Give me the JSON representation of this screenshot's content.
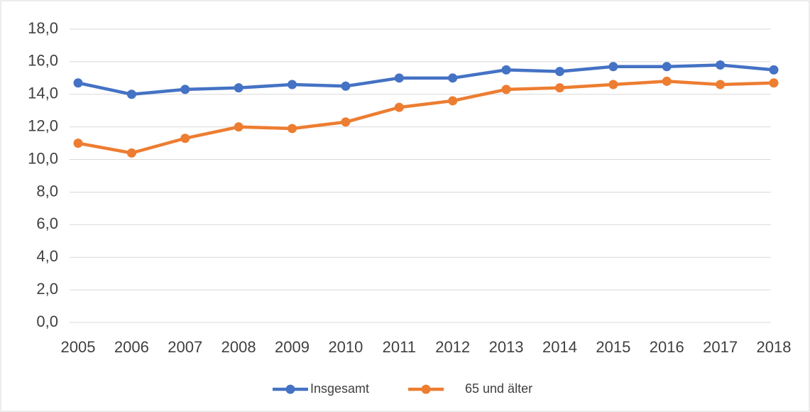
{
  "chart_data": {
    "type": "line",
    "categories": [
      "2005",
      "2006",
      "2007",
      "2008",
      "2009",
      "2010",
      "2011",
      "2012",
      "2013",
      "2014",
      "2015",
      "2016",
      "2017",
      "2018"
    ],
    "series": [
      {
        "name": "Insgesamt",
        "color": "#4472c4",
        "values": [
          14.7,
          14.0,
          14.3,
          14.4,
          14.6,
          14.5,
          15.0,
          15.0,
          15.5,
          15.4,
          15.7,
          15.7,
          15.8,
          15.5
        ]
      },
      {
        "name": "65 und älter",
        "color": "#ed7d31",
        "values": [
          11.0,
          10.4,
          11.3,
          12.0,
          11.9,
          12.3,
          13.2,
          13.6,
          14.3,
          14.4,
          14.6,
          14.8,
          14.6,
          14.7
        ]
      }
    ],
    "ylim": [
      0,
      18
    ],
    "yticks": [
      {
        "value": 0,
        "label": "0,0"
      },
      {
        "value": 2,
        "label": "2,0"
      },
      {
        "value": 4,
        "label": "4,0"
      },
      {
        "value": 6,
        "label": "6,0"
      },
      {
        "value": 8,
        "label": "8,0"
      },
      {
        "value": 10,
        "label": "10,0"
      },
      {
        "value": 12,
        "label": "12,0"
      },
      {
        "value": 14,
        "label": "14,0"
      },
      {
        "value": 16,
        "label": "16,0"
      },
      {
        "value": 18,
        "label": "18,0"
      }
    ],
    "grid": true,
    "legend": "bottom"
  }
}
